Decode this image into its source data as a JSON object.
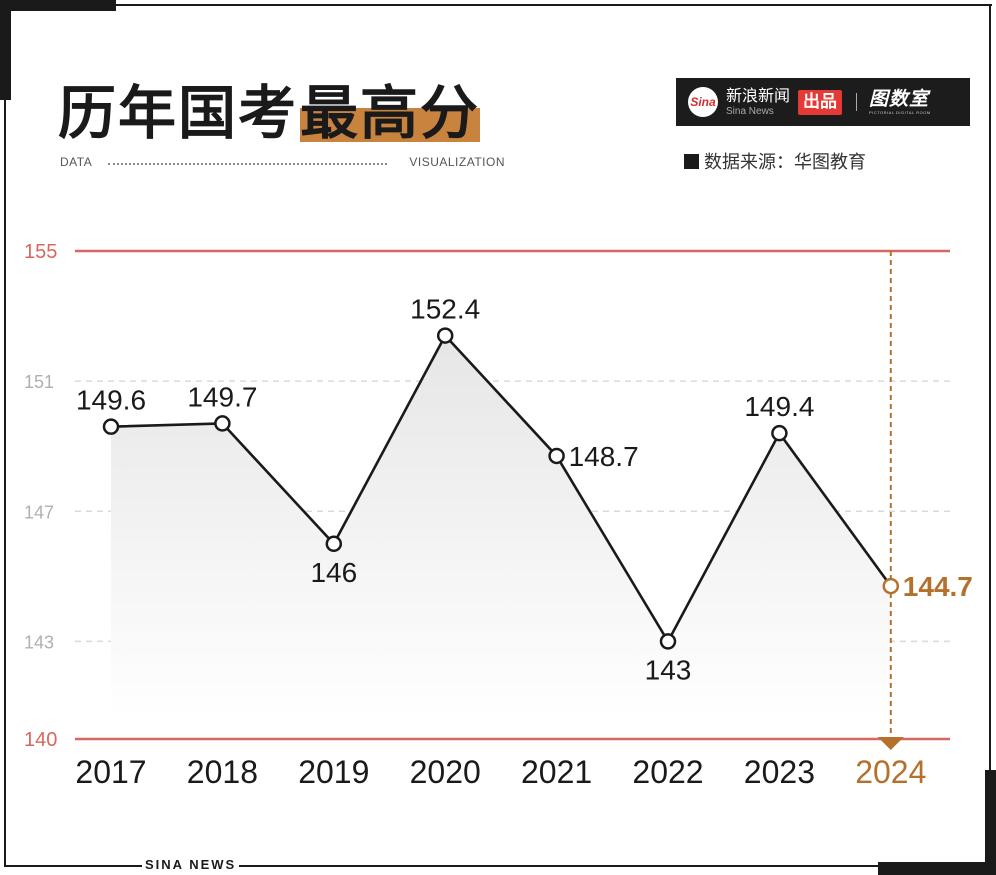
{
  "header": {
    "title_main": "历年国考",
    "title_highlight": "最高分",
    "tag_left": "DATA",
    "tag_right": "VISUALIZATION"
  },
  "brand": {
    "logo_text": "Sina",
    "name_cn": "新浪新闻",
    "name_en": "Sina News",
    "produce": "出品",
    "sub_name": "图数室",
    "sub_small": "PICTORIAL DIGITAL ROOM"
  },
  "source": "数据来源：华图教育",
  "footer": "SINA NEWS",
  "colors": {
    "line": "#1a1a1a",
    "highlight": "#b5712c",
    "bound": "#d9665f",
    "grid": "#d9d9d9",
    "tick": "#b0b0b0"
  },
  "chart_data": {
    "type": "line",
    "title": "历年国考最高分",
    "categories": [
      "2017",
      "2018",
      "2019",
      "2020",
      "2021",
      "2022",
      "2023",
      "2024"
    ],
    "values": [
      149.6,
      149.7,
      146,
      152.4,
      148.7,
      143,
      149.4,
      144.7
    ],
    "value_labels": [
      "149.6",
      "149.7",
      "146",
      "152.4",
      "148.7",
      "143",
      "149.4",
      "144.7"
    ],
    "highlight_category": "2024",
    "ylim": [
      140,
      155
    ],
    "yticks": [
      "140",
      "143",
      "147",
      "151",
      "155"
    ],
    "ytick_values": [
      140,
      143,
      147,
      151,
      155
    ],
    "grid": true
  }
}
